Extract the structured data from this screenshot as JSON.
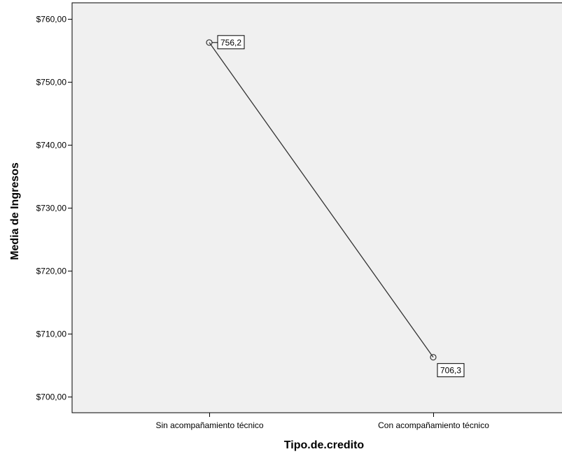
{
  "chart_data": {
    "type": "line",
    "title": "",
    "xlabel": "Tipo.de.credito",
    "ylabel": "Media de Ingresos",
    "categories": [
      "Sin acompañamiento técnico",
      "Con acompañamiento técnico"
    ],
    "values": [
      756.2,
      706.3
    ],
    "data_labels": [
      "756,2",
      "706,3"
    ],
    "ylim": [
      697.5,
      762.5
    ],
    "yticks": [
      700,
      710,
      720,
      730,
      740,
      750,
      760
    ],
    "ytick_labels": [
      "$700,00",
      "$710,00",
      "$720,00",
      "$730,00",
      "$740,00",
      "$750,00",
      "$760,00"
    ],
    "grid": false,
    "legend": "none",
    "colors": {
      "plot_background": "#f0f0f0",
      "line": "#333333",
      "axis": "#000000"
    }
  }
}
